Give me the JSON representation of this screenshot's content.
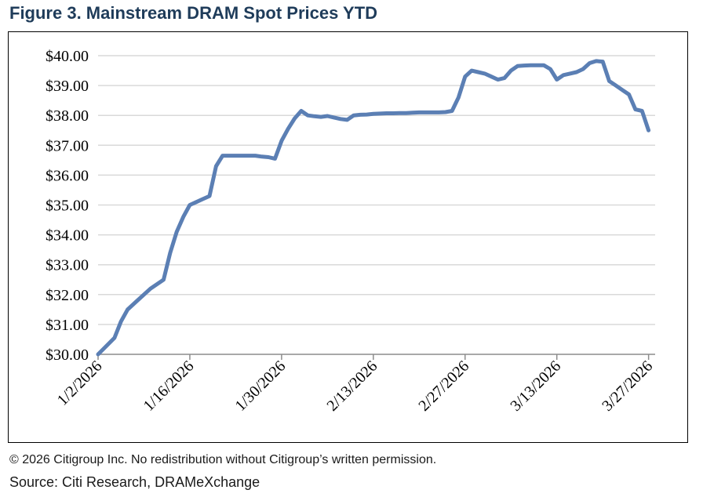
{
  "figure": {
    "title": "Figure 3. Mainstream DRAM Spot Prices YTD",
    "copyright": "© 2026 Citigroup Inc. No redistribution without Citigroup’s written permission.",
    "source": "Source: Citi Research, DRAMeXchange"
  },
  "colors": {
    "line": "#5b7fb4",
    "grid": "#d9d9d9",
    "title": "#1f3c5a"
  },
  "chart_data": {
    "type": "line",
    "title": "Mainstream DRAM Spot Prices YTD",
    "xlabel": "",
    "ylabel": "",
    "ylim": [
      30,
      40
    ],
    "yticks": [
      30,
      31,
      32,
      33,
      34,
      35,
      36,
      37,
      38,
      39,
      40
    ],
    "ytick_labels": [
      "$30.00",
      "$31.00",
      "$32.00",
      "$33.00",
      "$34.00",
      "$35.00",
      "$36.00",
      "$37.00",
      "$38.00",
      "$39.00",
      "$40.00"
    ],
    "x_unit": "days since 1/2/2026",
    "xlim": [
      0,
      85
    ],
    "xticks": [
      0,
      14,
      28,
      42,
      56,
      70,
      84
    ],
    "xtick_labels": [
      "1/2/2026",
      "1/16/2026",
      "1/30/2026",
      "2/13/2026",
      "2/27/2026",
      "3/13/2026",
      "3/27/2026"
    ],
    "grid": true,
    "series": [
      {
        "name": "DRAM spot price",
        "x": [
          0,
          2.5,
          3.5,
          4.5,
          6,
          8,
          10,
          11,
          12,
          13,
          14,
          15,
          16,
          17,
          18,
          19,
          20,
          22,
          24,
          25,
          26,
          27,
          28,
          29,
          30,
          31,
          32,
          33,
          34,
          35,
          36,
          37,
          38,
          39,
          40,
          41,
          42,
          43,
          44,
          45,
          46,
          47,
          48,
          49,
          50,
          51,
          52,
          53,
          54,
          55,
          56,
          57,
          58,
          59,
          60,
          61,
          62,
          63,
          64,
          65,
          66,
          67,
          68,
          69,
          70,
          71,
          72,
          73,
          74,
          75,
          76,
          77,
          78,
          79,
          80,
          81,
          82,
          83,
          84
        ],
        "y": [
          30.0,
          30.55,
          31.1,
          31.5,
          31.8,
          32.2,
          32.5,
          33.4,
          34.1,
          34.6,
          35.0,
          35.1,
          35.2,
          35.3,
          36.3,
          36.65,
          36.65,
          36.65,
          36.65,
          36.62,
          36.6,
          36.55,
          37.15,
          37.55,
          37.9,
          38.15,
          38.0,
          37.97,
          37.95,
          37.98,
          37.93,
          37.88,
          37.85,
          38.0,
          38.02,
          38.03,
          38.05,
          38.06,
          38.07,
          38.07,
          38.08,
          38.08,
          38.09,
          38.1,
          38.1,
          38.1,
          38.1,
          38.11,
          38.15,
          38.6,
          39.3,
          39.5,
          39.45,
          39.4,
          39.3,
          39.2,
          39.25,
          39.5,
          39.65,
          39.67,
          39.68,
          39.68,
          39.68,
          39.55,
          39.2,
          39.35,
          39.4,
          39.45,
          39.55,
          39.75,
          39.82,
          39.8,
          39.15,
          39.0,
          38.85,
          38.7,
          38.2,
          38.15,
          37.5
        ]
      }
    ]
  }
}
